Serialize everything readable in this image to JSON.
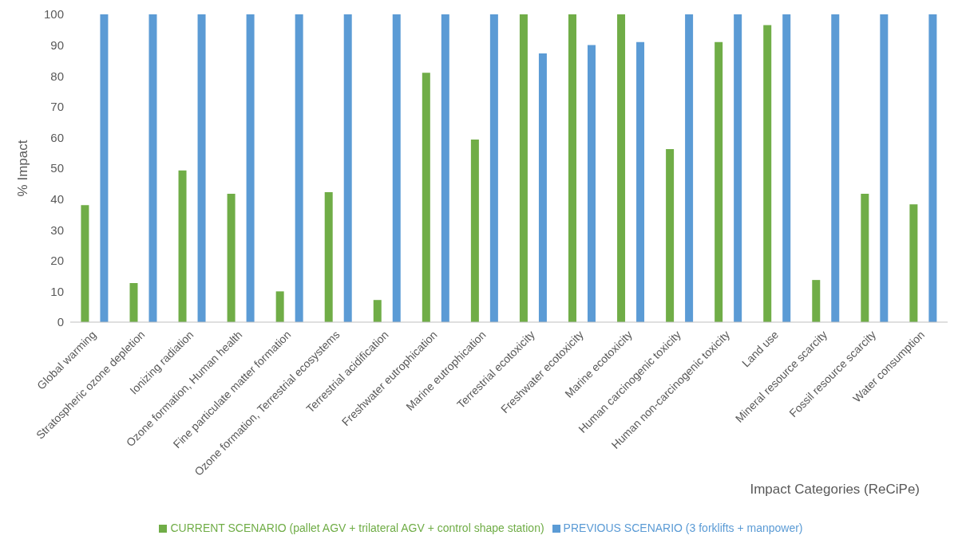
{
  "chart_data": {
    "type": "bar",
    "xlabel": "Impact Categories (ReCiPe)",
    "ylabel": "% Impact",
    "categories": [
      "Global warming",
      "Stratospheric ozone depletion",
      "Ionizing radiation",
      "Ozone formation, Human health",
      "Fine particulate matter formation",
      "Ozone formation, Terrestrial ecosystems",
      "Terrestrial acidification",
      "Freshwater eutrophication",
      "Marine eutrophication",
      "Terrestrial ecotoxicity",
      "Freshwater ecotoxicity",
      "Marine ecotoxicity",
      "Human carcinogenic toxicity",
      "Human non-carcinogenic toxicity",
      "Land use",
      "Mineral resource scarcity",
      "Fossil resource scarcity",
      "Water consumption"
    ],
    "series": [
      {
        "name": "CURRENT SCENARIO (pallet AGV + trilateral AGV + control shape station)",
        "color": "#70ad47",
        "values": [
          38,
          12.7,
          49.3,
          41.7,
          10,
          42.2,
          7.2,
          81,
          59.3,
          100,
          100,
          100,
          56.2,
          91,
          96.5,
          13.7,
          41.7,
          38.3
        ]
      },
      {
        "name": "PREVIOUS SCENARIO (3 forklifts + manpower)",
        "color": "#5b9bd5",
        "values": [
          100,
          100,
          100,
          100,
          100,
          100,
          100,
          100,
          100,
          87.3,
          90,
          91,
          100,
          100,
          100,
          100,
          100,
          100
        ]
      }
    ],
    "ylim": [
      0,
      100
    ],
    "yticks": [
      0,
      10,
      20,
      30,
      40,
      50,
      60,
      70,
      80,
      90,
      100
    ],
    "grid": false,
    "legend": "bottom"
  }
}
